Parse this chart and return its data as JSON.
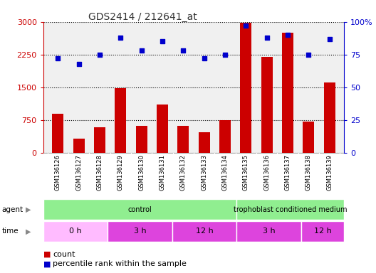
{
  "title": "GDS2414 / 212641_at",
  "samples": [
    "GSM136126",
    "GSM136127",
    "GSM136128",
    "GSM136129",
    "GSM136130",
    "GSM136131",
    "GSM136132",
    "GSM136133",
    "GSM136134",
    "GSM136135",
    "GSM136136",
    "GSM136137",
    "GSM136138",
    "GSM136139"
  ],
  "counts": [
    900,
    320,
    580,
    1480,
    620,
    1100,
    620,
    480,
    750,
    2980,
    2200,
    2750,
    720,
    1620
  ],
  "percentiles": [
    72,
    68,
    75,
    88,
    78,
    85,
    78,
    72,
    75,
    97,
    88,
    90,
    75,
    87
  ],
  "ylim_left": [
    0,
    3000
  ],
  "ylim_right": [
    0,
    100
  ],
  "yticks_left": [
    0,
    750,
    1500,
    2250,
    3000
  ],
  "yticks_right": [
    0,
    25,
    50,
    75,
    100
  ],
  "bar_color": "#cc0000",
  "dot_color": "#0000cc",
  "grid_color": "#000000",
  "tick_label_color": "#cc0000",
  "right_tick_color": "#0000cc",
  "title_color": "#333333",
  "bg_color": "#ffffff",
  "plot_bg": "#f0f0f0",
  "label_bg": "#d0d0d0",
  "agent_control_color": "#90ee90",
  "agent_tcm_color": "#90ee90",
  "time_0h_color": "#ffbbff",
  "time_other_color": "#dd44dd"
}
